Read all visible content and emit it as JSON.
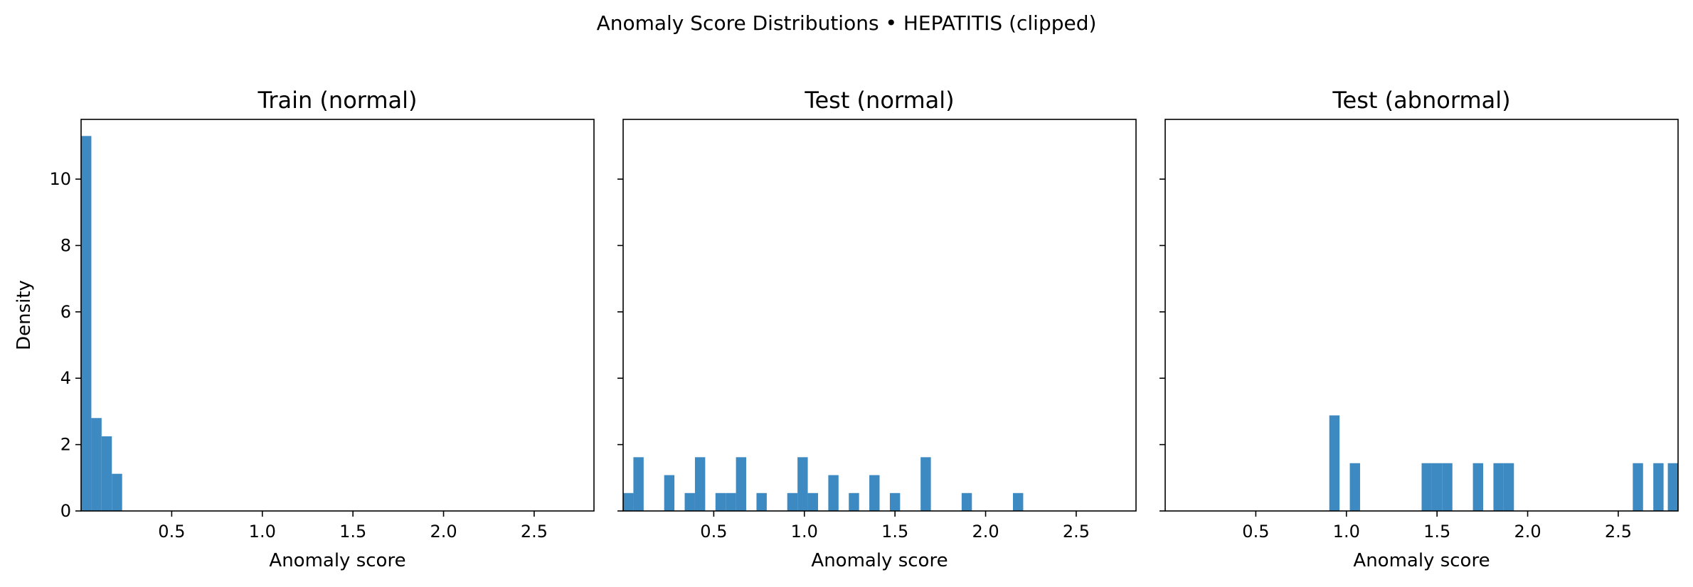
{
  "figure": {
    "suptitle": "Anomaly Score Distributions • HEPATITIS (clipped)"
  },
  "colors": {
    "bar": "#3d89c2",
    "axes": "#000000",
    "background": "#ffffff"
  },
  "chart_data": [
    {
      "type": "bar",
      "title": "Train (normal)",
      "xlabel": "Anomaly score",
      "ylabel": "Density",
      "xlim": [
        0.0,
        2.83
      ],
      "ylim": [
        0,
        11.8
      ],
      "xticks": [
        0.5,
        1.0,
        1.5,
        2.0,
        2.5
      ],
      "xtick_labels": [
        "0.5",
        "1.0",
        "1.5",
        "2.0",
        "2.5"
      ],
      "yticks": [
        0,
        2,
        4,
        6,
        8,
        10
      ],
      "ytick_labels": [
        "0",
        "2",
        "4",
        "6",
        "8",
        "10"
      ],
      "show_ytick_labels": true,
      "grid": false,
      "bin_width": 0.0566,
      "bins": [
        {
          "x0": 0.0,
          "x1": 0.0566,
          "y": 11.3
        },
        {
          "x0": 0.0566,
          "x1": 0.1132,
          "y": 2.8
        },
        {
          "x0": 0.1132,
          "x1": 0.1698,
          "y": 2.25
        },
        {
          "x0": 0.1698,
          "x1": 0.2264,
          "y": 1.12
        }
      ]
    },
    {
      "type": "bar",
      "title": "Test (normal)",
      "xlabel": "Anomaly score",
      "ylabel": "",
      "xlim": [
        0.0,
        2.83
      ],
      "ylim": [
        0,
        11.8
      ],
      "xticks": [
        0.5,
        1.0,
        1.5,
        2.0,
        2.5
      ],
      "xtick_labels": [
        "0.5",
        "1.0",
        "1.5",
        "2.0",
        "2.5"
      ],
      "yticks": [
        0,
        2,
        4,
        6,
        8,
        10
      ],
      "ytick_labels": [
        "",
        "",
        "",
        "",
        "",
        ""
      ],
      "show_ytick_labels": false,
      "grid": false,
      "bin_width": 0.0566,
      "bins": [
        {
          "x0": 0.0,
          "x1": 0.0566,
          "y": 0.54
        },
        {
          "x0": 0.0566,
          "x1": 0.1132,
          "y": 1.62
        },
        {
          "x0": 0.2264,
          "x1": 0.283,
          "y": 1.08
        },
        {
          "x0": 0.3396,
          "x1": 0.3962,
          "y": 0.54
        },
        {
          "x0": 0.3962,
          "x1": 0.4528,
          "y": 1.62
        },
        {
          "x0": 0.5094,
          "x1": 0.566,
          "y": 0.54
        },
        {
          "x0": 0.566,
          "x1": 0.6226,
          "y": 0.54
        },
        {
          "x0": 0.6226,
          "x1": 0.6792,
          "y": 1.62
        },
        {
          "x0": 0.7358,
          "x1": 0.7924,
          "y": 0.54
        },
        {
          "x0": 0.9056,
          "x1": 0.9622,
          "y": 0.54
        },
        {
          "x0": 0.9622,
          "x1": 1.0188,
          "y": 1.62
        },
        {
          "x0": 1.0188,
          "x1": 1.0754,
          "y": 0.54
        },
        {
          "x0": 1.132,
          "x1": 1.1886,
          "y": 1.08
        },
        {
          "x0": 1.2452,
          "x1": 1.3018,
          "y": 0.54
        },
        {
          "x0": 1.3584,
          "x1": 1.415,
          "y": 1.08
        },
        {
          "x0": 1.4716,
          "x1": 1.5282,
          "y": 0.54
        },
        {
          "x0": 1.6414,
          "x1": 1.698,
          "y": 1.62
        },
        {
          "x0": 1.8678,
          "x1": 1.9244,
          "y": 0.54
        },
        {
          "x0": 2.151,
          "x1": 2.2076,
          "y": 0.54
        }
      ]
    },
    {
      "type": "bar",
      "title": "Test (abnormal)",
      "xlabel": "Anomaly score",
      "ylabel": "",
      "xlim": [
        0.0,
        2.83
      ],
      "ylim": [
        0,
        11.8
      ],
      "xticks": [
        0.5,
        1.0,
        1.5,
        2.0,
        2.5
      ],
      "xtick_labels": [
        "0.5",
        "1.0",
        "1.5",
        "2.0",
        "2.5"
      ],
      "yticks": [
        0,
        2,
        4,
        6,
        8,
        10
      ],
      "ytick_labels": [
        "",
        "",
        "",
        "",
        "",
        ""
      ],
      "show_ytick_labels": false,
      "grid": false,
      "bin_width": 0.0566,
      "bins": [
        {
          "x0": 0.9056,
          "x1": 0.9622,
          "y": 2.88
        },
        {
          "x0": 1.0188,
          "x1": 1.0754,
          "y": 1.44
        },
        {
          "x0": 1.415,
          "x1": 1.4716,
          "y": 1.44
        },
        {
          "x0": 1.4716,
          "x1": 1.5282,
          "y": 1.44
        },
        {
          "x0": 1.5282,
          "x1": 1.5848,
          "y": 1.44
        },
        {
          "x0": 1.698,
          "x1": 1.7546,
          "y": 1.44
        },
        {
          "x0": 1.8112,
          "x1": 1.8678,
          "y": 1.44
        },
        {
          "x0": 1.8678,
          "x1": 1.9244,
          "y": 1.44
        },
        {
          "x0": 2.5802,
          "x1": 2.6368,
          "y": 1.44
        },
        {
          "x0": 2.6934,
          "x1": 2.75,
          "y": 1.44
        },
        {
          "x0": 2.7734,
          "x1": 2.83,
          "y": 1.44
        }
      ]
    }
  ]
}
